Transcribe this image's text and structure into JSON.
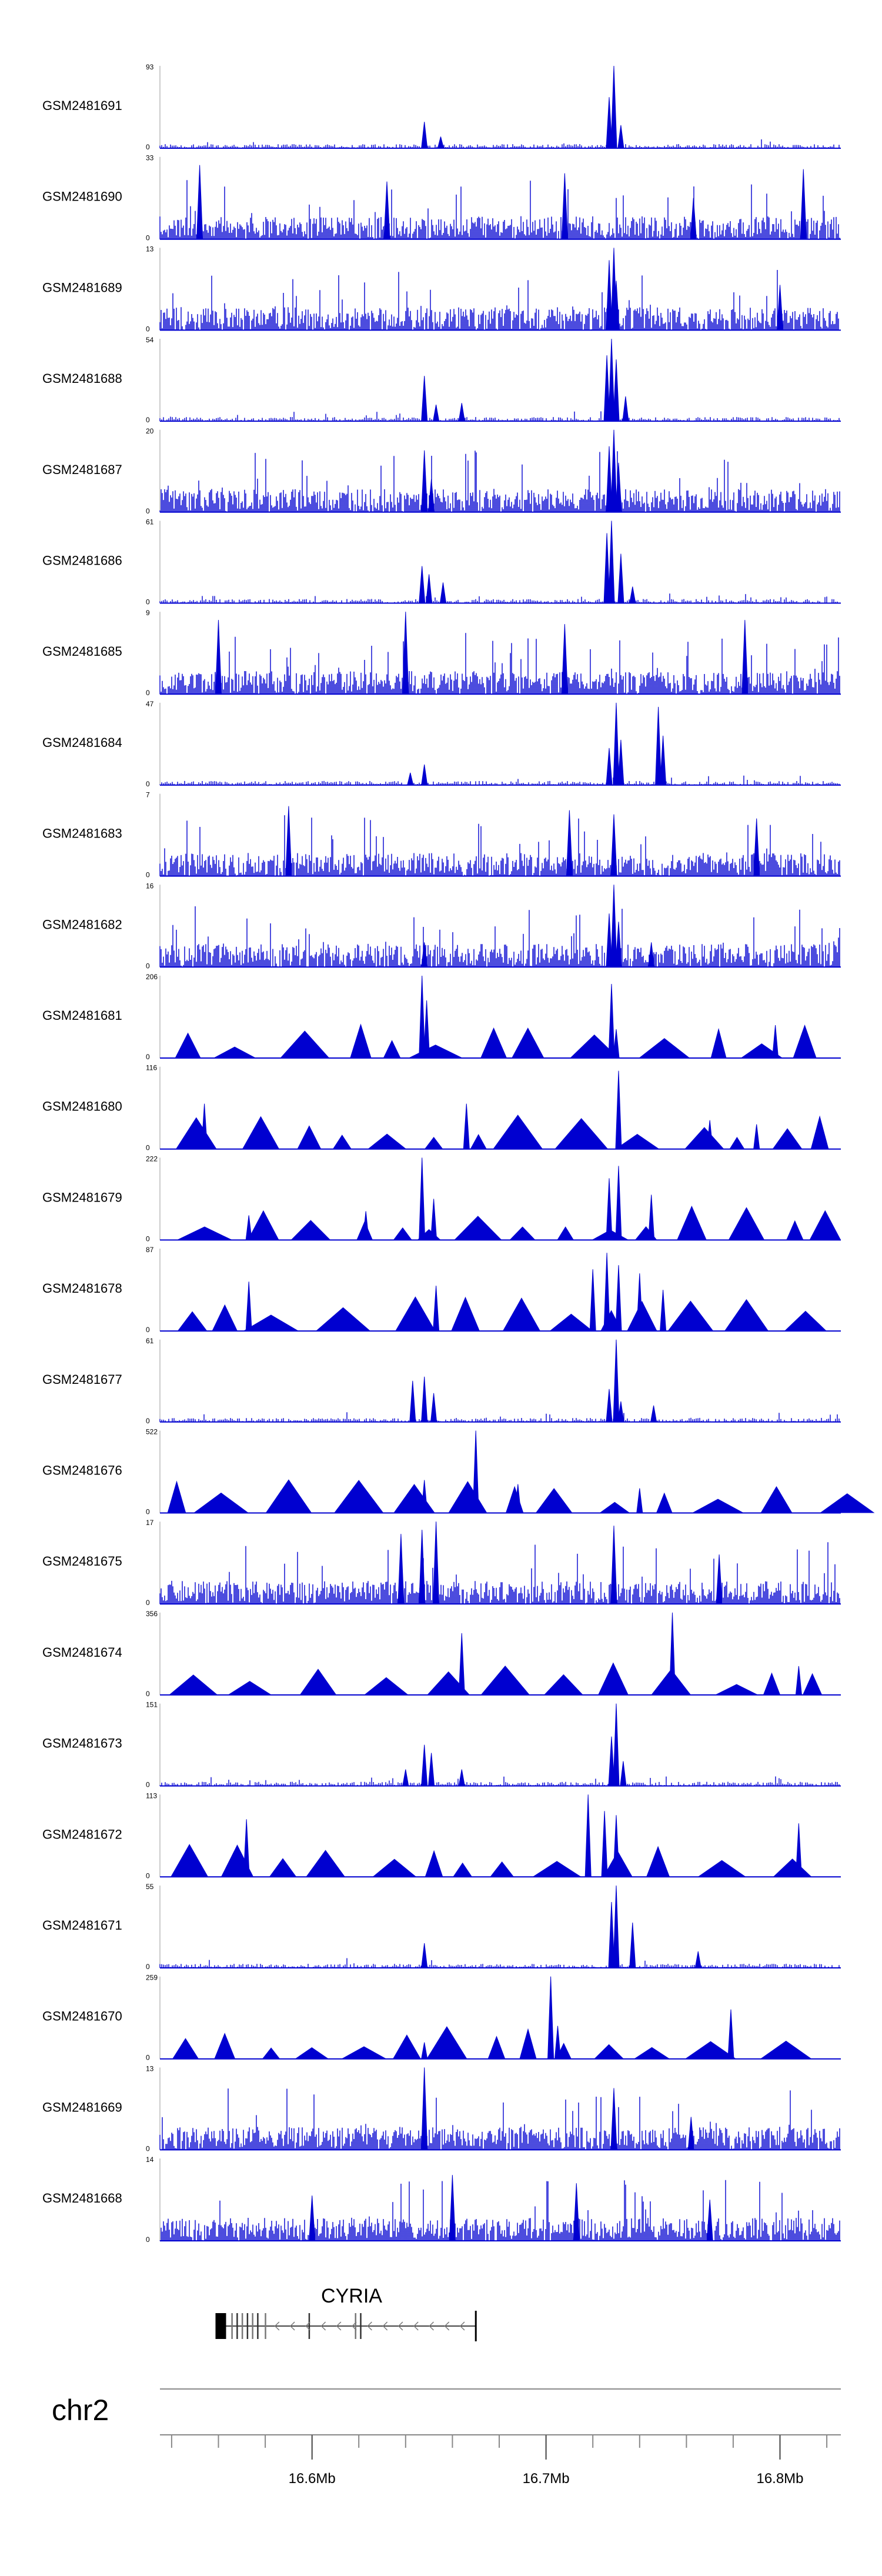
{
  "chart_data": {
    "type": "area",
    "title": "",
    "chromosome": "chr2",
    "xlim_mb": [
      16.535,
      16.826
    ],
    "x_ticks": [
      "16.6Mb",
      "16.7Mb",
      "16.8Mb"
    ],
    "x_tick_values_mb": [
      16.6,
      16.7,
      16.8
    ],
    "series_color": "#0000d0",
    "tracks": [
      {
        "name": "GSM2481691",
        "ymax": 93,
        "ymin": 0,
        "style": "sparse",
        "peaks": [
          [
            16.648,
            0.32
          ],
          [
            16.655,
            0.14
          ],
          [
            16.727,
            0.62
          ],
          [
            16.729,
            1.0
          ],
          [
            16.732,
            0.28
          ]
        ]
      },
      {
        "name": "GSM2481690",
        "ymax": 33,
        "ymin": 0,
        "style": "noisy",
        "peaks": [
          [
            16.552,
            0.9
          ],
          [
            16.632,
            0.7
          ],
          [
            16.708,
            0.8
          ],
          [
            16.763,
            0.5
          ],
          [
            16.81,
            0.85
          ]
        ]
      },
      {
        "name": "GSM2481689",
        "ymax": 13,
        "ymin": 0,
        "style": "noisy",
        "peaks": [
          [
            16.727,
            0.85
          ],
          [
            16.729,
            1.0
          ],
          [
            16.73,
            0.6
          ],
          [
            16.8,
            0.55
          ]
        ]
      },
      {
        "name": "GSM2481688",
        "ymax": 54,
        "ymin": 0,
        "style": "sparse",
        "peaks": [
          [
            16.648,
            0.55
          ],
          [
            16.653,
            0.2
          ],
          [
            16.664,
            0.22
          ],
          [
            16.726,
            0.8
          ],
          [
            16.728,
            1.0
          ],
          [
            16.73,
            0.75
          ],
          [
            16.734,
            0.3
          ]
        ]
      },
      {
        "name": "GSM2481687",
        "ymax": 20,
        "ymin": 0,
        "style": "noisy",
        "peaks": [
          [
            16.648,
            0.75
          ],
          [
            16.651,
            0.4
          ],
          [
            16.727,
            0.8
          ],
          [
            16.729,
            1.0
          ],
          [
            16.731,
            0.6
          ]
        ]
      },
      {
        "name": "GSM2481686",
        "ymax": 61,
        "ymin": 0,
        "style": "sparse",
        "peaks": [
          [
            16.647,
            0.45
          ],
          [
            16.65,
            0.35
          ],
          [
            16.656,
            0.25
          ],
          [
            16.726,
            0.85
          ],
          [
            16.728,
            1.0
          ],
          [
            16.732,
            0.6
          ],
          [
            16.737,
            0.2
          ]
        ]
      },
      {
        "name": "GSM2481685",
        "ymax": 9,
        "ymin": 0,
        "style": "noisy",
        "peaks": [
          [
            16.56,
            0.9
          ],
          [
            16.64,
            1.0
          ],
          [
            16.708,
            0.85
          ],
          [
            16.785,
            0.9
          ]
        ]
      },
      {
        "name": "GSM2481684",
        "ymax": 47,
        "ymin": 0,
        "style": "sparse",
        "peaks": [
          [
            16.642,
            0.15
          ],
          [
            16.648,
            0.25
          ],
          [
            16.727,
            0.45
          ],
          [
            16.73,
            1.0
          ],
          [
            16.732,
            0.55
          ],
          [
            16.748,
            0.95
          ],
          [
            16.75,
            0.6
          ]
        ]
      },
      {
        "name": "GSM2481683",
        "ymax": 7,
        "ymin": 0,
        "style": "noisy",
        "peaks": [
          [
            16.59,
            0.85
          ],
          [
            16.71,
            0.8
          ],
          [
            16.729,
            0.75
          ],
          [
            16.79,
            0.7
          ]
        ]
      },
      {
        "name": "GSM2481682",
        "ymax": 16,
        "ymin": 0,
        "style": "noisy",
        "peaks": [
          [
            16.648,
            0.3
          ],
          [
            16.727,
            0.65
          ],
          [
            16.729,
            1.0
          ],
          [
            16.731,
            0.55
          ],
          [
            16.745,
            0.3
          ]
        ]
      },
      {
        "name": "GSM2481681",
        "ymax": 206,
        "ymin": 0,
        "style": "triangles",
        "peaks": [
          [
            16.647,
            1.0
          ],
          [
            16.649,
            0.7
          ],
          [
            16.728,
            0.9
          ],
          [
            16.73,
            0.35
          ],
          [
            16.798,
            0.4
          ]
        ]
      },
      {
        "name": "GSM2481680",
        "ymax": 116,
        "ymin": 0,
        "style": "triangles",
        "peaks": [
          [
            16.554,
            0.55
          ],
          [
            16.666,
            0.55
          ],
          [
            16.731,
            0.95
          ],
          [
            16.77,
            0.35
          ],
          [
            16.79,
            0.3
          ]
        ]
      },
      {
        "name": "GSM2481679",
        "ymax": 222,
        "ymin": 0,
        "style": "triangles",
        "peaks": [
          [
            16.573,
            0.3
          ],
          [
            16.623,
            0.35
          ],
          [
            16.647,
            1.0
          ],
          [
            16.652,
            0.5
          ],
          [
            16.727,
            0.75
          ],
          [
            16.731,
            0.9
          ],
          [
            16.745,
            0.55
          ]
        ]
      },
      {
        "name": "GSM2481678",
        "ymax": 87,
        "ymin": 0,
        "style": "triangles",
        "peaks": [
          [
            16.573,
            0.6
          ],
          [
            16.653,
            0.55
          ],
          [
            16.72,
            0.75
          ],
          [
            16.726,
            0.95
          ],
          [
            16.731,
            0.8
          ],
          [
            16.74,
            0.7
          ],
          [
            16.75,
            0.5
          ]
        ]
      },
      {
        "name": "GSM2481677",
        "ymax": 61,
        "ymin": 0,
        "style": "sparse",
        "peaks": [
          [
            16.643,
            0.5
          ],
          [
            16.648,
            0.55
          ],
          [
            16.652,
            0.35
          ],
          [
            16.727,
            0.4
          ],
          [
            16.73,
            1.0
          ],
          [
            16.732,
            0.25
          ],
          [
            16.746,
            0.2
          ]
        ]
      },
      {
        "name": "GSM2481676",
        "ymax": 522,
        "ymin": 0,
        "style": "triangles",
        "peaks": [
          [
            16.648,
            0.4
          ],
          [
            16.67,
            1.0
          ],
          [
            16.688,
            0.35
          ],
          [
            16.74,
            0.3
          ]
        ]
      },
      {
        "name": "GSM2481675",
        "ymax": 17,
        "ymin": 0,
        "style": "noisy",
        "peaks": [
          [
            16.638,
            0.85
          ],
          [
            16.647,
            0.9
          ],
          [
            16.653,
            1.0
          ],
          [
            16.729,
            0.95
          ],
          [
            16.774,
            0.6
          ]
        ]
      },
      {
        "name": "GSM2481674",
        "ymax": 356,
        "ymin": 0,
        "style": "triangles",
        "peaks": [
          [
            16.664,
            0.75
          ],
          [
            16.754,
            1.0
          ],
          [
            16.808,
            0.35
          ]
        ]
      },
      {
        "name": "GSM2481673",
        "ymax": 151,
        "ymin": 0,
        "style": "sparse",
        "peaks": [
          [
            16.64,
            0.2
          ],
          [
            16.648,
            0.5
          ],
          [
            16.651,
            0.4
          ],
          [
            16.664,
            0.2
          ],
          [
            16.728,
            0.6
          ],
          [
            16.73,
            1.0
          ],
          [
            16.733,
            0.3
          ]
        ]
      },
      {
        "name": "GSM2481672",
        "ymax": 113,
        "ymin": 0,
        "style": "triangles",
        "peaks": [
          [
            16.572,
            0.7
          ],
          [
            16.718,
            1.0
          ],
          [
            16.725,
            0.8
          ],
          [
            16.73,
            0.75
          ],
          [
            16.808,
            0.65
          ]
        ]
      },
      {
        "name": "GSM2481671",
        "ymax": 55,
        "ymin": 0,
        "style": "sparse",
        "peaks": [
          [
            16.648,
            0.3
          ],
          [
            16.728,
            0.8
          ],
          [
            16.73,
            1.0
          ],
          [
            16.737,
            0.55
          ],
          [
            16.765,
            0.2
          ]
        ]
      },
      {
        "name": "GSM2481670",
        "ymax": 259,
        "ymin": 0,
        "style": "triangles",
        "peaks": [
          [
            16.648,
            0.2
          ],
          [
            16.702,
            1.0
          ],
          [
            16.705,
            0.4
          ],
          [
            16.779,
            0.6
          ]
        ]
      },
      {
        "name": "GSM2481669",
        "ymax": 13,
        "ymin": 0,
        "style": "noisy",
        "peaks": [
          [
            16.648,
            1.0
          ],
          [
            16.729,
            0.75
          ],
          [
            16.762,
            0.4
          ]
        ]
      },
      {
        "name": "GSM2481668",
        "ymax": 14,
        "ymin": 0,
        "style": "noisy",
        "peaks": [
          [
            16.6,
            0.55
          ],
          [
            16.66,
            0.8
          ],
          [
            16.713,
            0.7
          ],
          [
            16.77,
            0.5
          ]
        ]
      }
    ],
    "gene": {
      "name": "CYRIA",
      "start_mb": 16.56,
      "end_mb": 16.67,
      "strand": "-"
    }
  }
}
